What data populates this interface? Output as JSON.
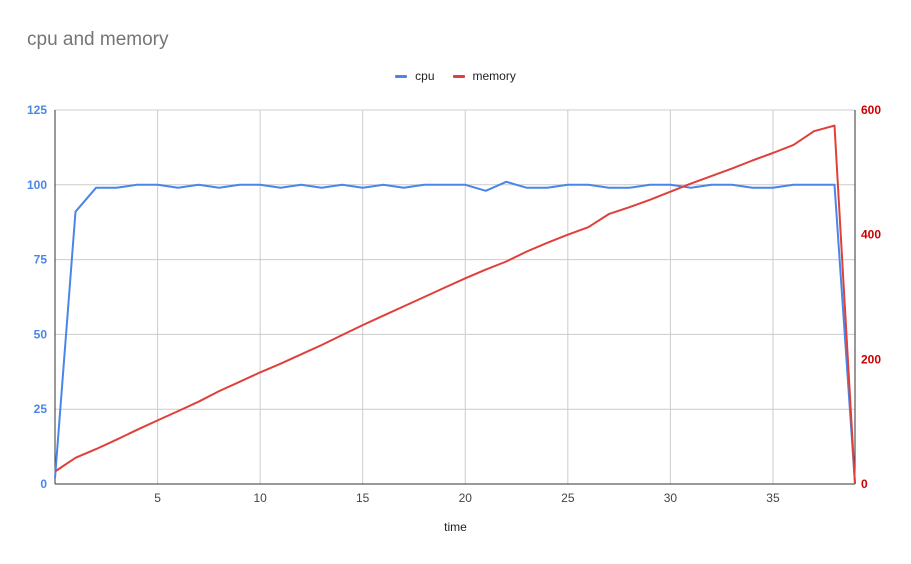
{
  "chart_data": {
    "type": "line",
    "title": "cpu and memory",
    "xlabel": "time",
    "ylabel": "",
    "ylabel_right": "",
    "xlim": [
      0,
      39
    ],
    "ylim": [
      0,
      125
    ],
    "ylim_right": [
      0,
      600
    ],
    "x_ticks": [
      5,
      10,
      15,
      20,
      25,
      30,
      35
    ],
    "y_ticks": [
      0,
      25,
      50,
      75,
      100,
      125
    ],
    "y_ticks_right": [
      0,
      200,
      400,
      600
    ],
    "legend_position": "top",
    "grid": true,
    "x": [
      0,
      1,
      2,
      3,
      4,
      5,
      6,
      7,
      8,
      9,
      10,
      11,
      12,
      13,
      14,
      15,
      16,
      17,
      18,
      19,
      20,
      21,
      22,
      23,
      24,
      25,
      26,
      27,
      28,
      29,
      30,
      31,
      32,
      33,
      34,
      35,
      36,
      37,
      38,
      39
    ],
    "series": [
      {
        "name": "cpu",
        "axis": "left",
        "color": "#4a86e8",
        "values": [
          2,
          91,
          99,
          99,
          100,
          100,
          99,
          100,
          99,
          100,
          100,
          99,
          100,
          99,
          100,
          99,
          100,
          99,
          100,
          100,
          100,
          98,
          101,
          99,
          99,
          100,
          100,
          99,
          99,
          100,
          100,
          99,
          100,
          100,
          99,
          99,
          100,
          100,
          100,
          0
        ]
      },
      {
        "name": "memory",
        "axis": "right",
        "color": "#e0403a",
        "values": [
          20,
          42,
          56,
          71,
          87,
          102,
          117,
          132,
          149,
          164,
          179,
          193,
          208,
          223,
          239,
          255,
          270,
          285,
          300,
          315,
          330,
          344,
          357,
          373,
          387,
          400,
          412,
          433,
          444,
          456,
          469,
          482,
          494,
          506,
          519,
          531,
          544,
          566,
          575,
          0
        ]
      }
    ]
  },
  "colors": {
    "left_axis": "#4a86e8",
    "right_axis": "#cc0000",
    "grid": "#cccccc",
    "axis_line": "#333333"
  }
}
